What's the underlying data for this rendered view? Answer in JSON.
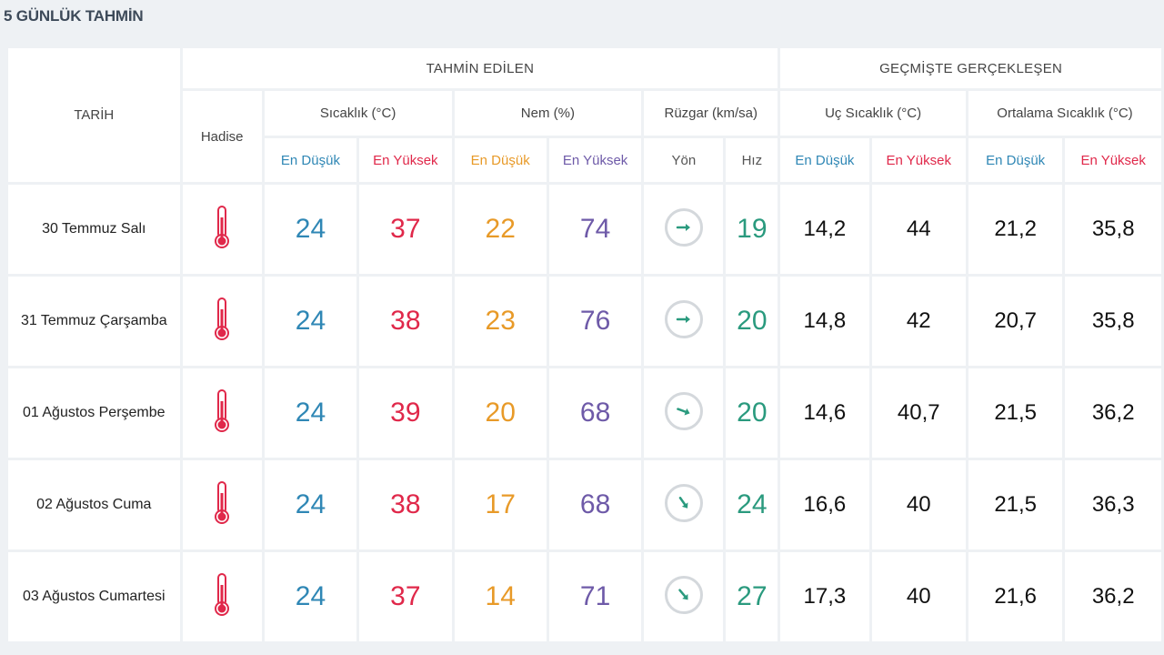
{
  "title": "5 GÜNLÜK TAHMİN",
  "headers": {
    "date": "TARİH",
    "forecast_group": "TAHMİN EDİLEN",
    "past_group": "GEÇMİŞTE GERÇEKLEŞEN",
    "event": "Hadise",
    "temperature": "Sıcaklık (°C)",
    "humidity": "Nem (%)",
    "wind": "Rüzgar (km/sa)",
    "extreme_temp": "Uç Sıcaklık (°C)",
    "average_temp": "Ortalama Sıcaklık (°C)",
    "low": "En Düşük",
    "high": "En Yüksek",
    "direction": "Yön",
    "speed": "Hız"
  },
  "colors": {
    "low": "#2f87b5",
    "high": "#e0284a",
    "humidity_low": "#e89a28",
    "humidity_high": "#6e5aa8",
    "wind_speed": "#2a9a7e",
    "thermometer": "#e0284a"
  },
  "rows": [
    {
      "date": "30 Temmuz Salı",
      "event_icon": "thermometer-icon",
      "temp_low": "24",
      "temp_high": "37",
      "hum_low": "22",
      "hum_high": "74",
      "wind_dir_deg": 90,
      "wind_speed": "19",
      "ext_low": "14,2",
      "ext_high": "44",
      "avg_low": "21,2",
      "avg_high": "35,8"
    },
    {
      "date": "31 Temmuz Çarşamba",
      "event_icon": "thermometer-icon",
      "temp_low": "24",
      "temp_high": "38",
      "hum_low": "23",
      "hum_high": "76",
      "wind_dir_deg": 90,
      "wind_speed": "20",
      "ext_low": "14,8",
      "ext_high": "42",
      "avg_low": "20,7",
      "avg_high": "35,8"
    },
    {
      "date": "01 Ağustos Perşembe",
      "event_icon": "thermometer-icon",
      "temp_low": "24",
      "temp_high": "39",
      "hum_low": "20",
      "hum_high": "68",
      "wind_dir_deg": 110,
      "wind_speed": "20",
      "ext_low": "14,6",
      "ext_high": "40,7",
      "avg_low": "21,5",
      "avg_high": "36,2"
    },
    {
      "date": "02 Ağustos Cuma",
      "event_icon": "thermometer-icon",
      "temp_low": "24",
      "temp_high": "38",
      "hum_low": "17",
      "hum_high": "68",
      "wind_dir_deg": 145,
      "wind_speed": "24",
      "ext_low": "16,6",
      "ext_high": "40",
      "avg_low": "21,5",
      "avg_high": "36,3"
    },
    {
      "date": "03 Ağustos Cumartesi",
      "event_icon": "thermometer-icon",
      "temp_low": "24",
      "temp_high": "37",
      "hum_low": "14",
      "hum_high": "71",
      "wind_dir_deg": 140,
      "wind_speed": "27",
      "ext_low": "17,3",
      "ext_high": "40",
      "avg_low": "21,6",
      "avg_high": "36,2"
    }
  ]
}
